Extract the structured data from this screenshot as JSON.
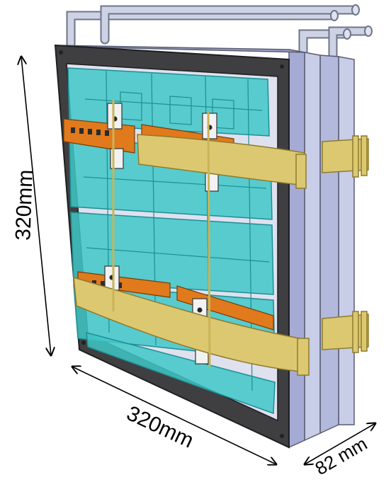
{
  "dimensions": {
    "height_label": "320mm",
    "width_label": "320mm",
    "depth_label": "82 mm"
  },
  "colors": {
    "frame": "#3f3f41",
    "tile": "#3fc7c7",
    "tile_edge": "#1e8f94",
    "strap": "#dcc870",
    "strap_edge": "#8f7a2c",
    "connector": "#e07a1c",
    "pipe": "#cdd3e4",
    "side_panel": "#b9bfe0"
  }
}
